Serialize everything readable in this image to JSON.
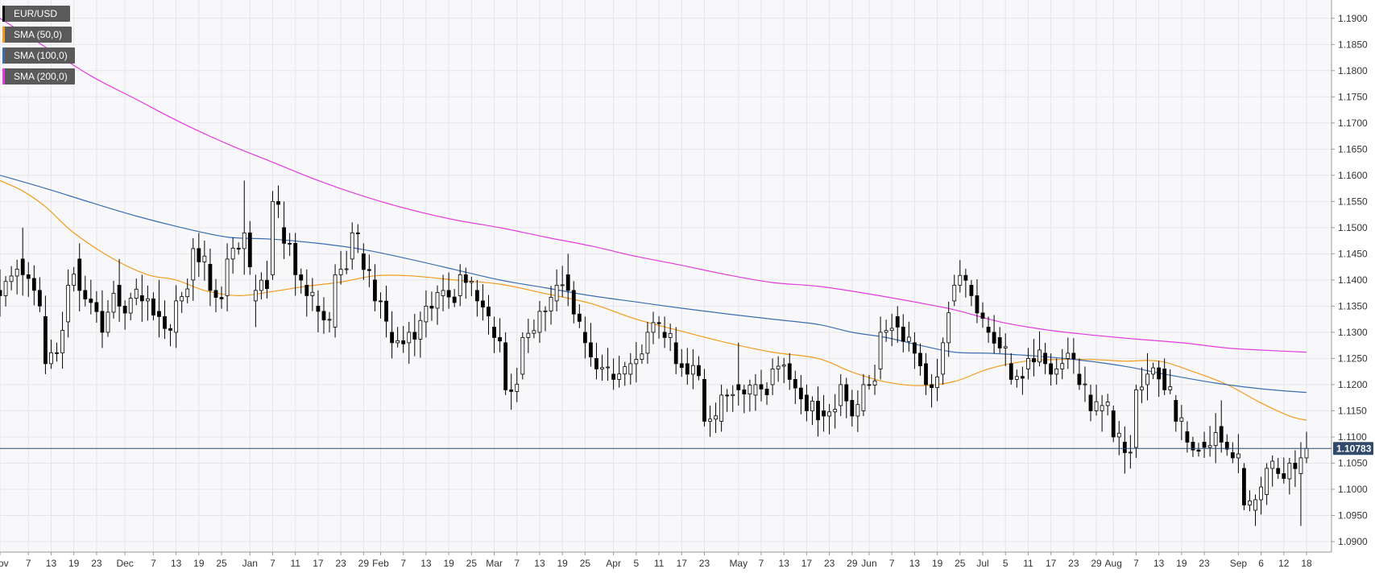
{
  "chart_data": {
    "type": "candlestick",
    "title": "",
    "symbol": "EUR/USD",
    "ylim": [
      1.088,
      1.1935
    ],
    "y_ticks": [
      "1.1900",
      "1.1850",
      "1.1800",
      "1.1750",
      "1.1700",
      "1.1650",
      "1.1600",
      "1.1550",
      "1.1500",
      "1.1450",
      "1.1400",
      "1.1350",
      "1.1300",
      "1.1250",
      "1.1200",
      "1.1150",
      "1.1100",
      "1.1050",
      "1.1000",
      "1.0950",
      "1.0900"
    ],
    "x_ticks": [
      {
        "label": "Nov",
        "t": 0
      },
      {
        "label": "7",
        "t": 5
      },
      {
        "label": "13",
        "t": 9
      },
      {
        "label": "19",
        "t": 13
      },
      {
        "label": "23",
        "t": 17
      },
      {
        "label": "Dec",
        "t": 22
      },
      {
        "label": "7",
        "t": 27
      },
      {
        "label": "13",
        "t": 31
      },
      {
        "label": "19",
        "t": 35
      },
      {
        "label": "25",
        "t": 39
      },
      {
        "label": "Jan",
        "t": 44
      },
      {
        "label": "7",
        "t": 48
      },
      {
        "label": "11",
        "t": 52
      },
      {
        "label": "17",
        "t": 56
      },
      {
        "label": "23",
        "t": 60
      },
      {
        "label": "29",
        "t": 64
      },
      {
        "label": "Feb",
        "t": 67
      },
      {
        "label": "7",
        "t": 71
      },
      {
        "label": "13",
        "t": 75
      },
      {
        "label": "19",
        "t": 79
      },
      {
        "label": "25",
        "t": 83
      },
      {
        "label": "Mar",
        "t": 87
      },
      {
        "label": "7",
        "t": 91
      },
      {
        "label": "13",
        "t": 95
      },
      {
        "label": "19",
        "t": 99
      },
      {
        "label": "25",
        "t": 103
      },
      {
        "label": "Apr",
        "t": 108
      },
      {
        "label": "5",
        "t": 112
      },
      {
        "label": "11",
        "t": 116
      },
      {
        "label": "17",
        "t": 120
      },
      {
        "label": "23",
        "t": 124
      },
      {
        "label": "May",
        "t": 130
      },
      {
        "label": "7",
        "t": 134
      },
      {
        "label": "13",
        "t": 138
      },
      {
        "label": "17",
        "t": 142
      },
      {
        "label": "23",
        "t": 146
      },
      {
        "label": "29",
        "t": 150
      },
      {
        "label": "Jun",
        "t": 153
      },
      {
        "label": "7",
        "t": 157
      },
      {
        "label": "13",
        "t": 161
      },
      {
        "label": "19",
        "t": 165
      },
      {
        "label": "25",
        "t": 169
      },
      {
        "label": "Jul",
        "t": 173
      },
      {
        "label": "5",
        "t": 177
      },
      {
        "label": "11",
        "t": 181
      },
      {
        "label": "17",
        "t": 185
      },
      {
        "label": "23",
        "t": 189
      },
      {
        "label": "29",
        "t": 193
      },
      {
        "label": "Aug",
        "t": 196
      },
      {
        "label": "7",
        "t": 200
      },
      {
        "label": "13",
        "t": 204
      },
      {
        "label": "19",
        "t": 208
      },
      {
        "label": "23",
        "t": 212
      },
      {
        "label": "Sep",
        "t": 218
      },
      {
        "label": "6",
        "t": 222
      },
      {
        "label": "12",
        "t": 226
      },
      {
        "label": "18",
        "t": 230
      }
    ],
    "anchors": [
      [
        0,
        1.138,
        1.142,
        1.133,
        1.137
      ],
      [
        4,
        1.144,
        1.15,
        1.137,
        1.141
      ],
      [
        8,
        1.133,
        1.137,
        1.122,
        1.124
      ],
      [
        12,
        1.132,
        1.142,
        1.129,
        1.139
      ],
      [
        14,
        1.144,
        1.147,
        1.134,
        1.138
      ],
      [
        18,
        1.134,
        1.138,
        1.127,
        1.13
      ],
      [
        21,
        1.139,
        1.144,
        1.132,
        1.135
      ],
      [
        25,
        1.137,
        1.141,
        1.132,
        1.136
      ],
      [
        28,
        1.134,
        1.14,
        1.129,
        1.133
      ],
      [
        31,
        1.13,
        1.139,
        1.127,
        1.136
      ],
      [
        34,
        1.14,
        1.148,
        1.136,
        1.146
      ],
      [
        37,
        1.143,
        1.146,
        1.135,
        1.138
      ],
      [
        40,
        1.137,
        1.147,
        1.134,
        1.144
      ],
      [
        43,
        1.146,
        1.159,
        1.141,
        1.149
      ],
      [
        45,
        1.136,
        1.141,
        1.131,
        1.138
      ],
      [
        48,
        1.141,
        1.157,
        1.14,
        1.155
      ],
      [
        50,
        1.15,
        1.155,
        1.144,
        1.147
      ],
      [
        52,
        1.147,
        1.149,
        1.137,
        1.141
      ],
      [
        54,
        1.139,
        1.142,
        1.133,
        1.137
      ],
      [
        56,
        1.135,
        1.138,
        1.13,
        1.134
      ],
      [
        59,
        1.131,
        1.143,
        1.129,
        1.141
      ],
      [
        62,
        1.144,
        1.151,
        1.142,
        1.149
      ],
      [
        64,
        1.145,
        1.147,
        1.14,
        1.142
      ],
      [
        66,
        1.14,
        1.143,
        1.134,
        1.136
      ],
      [
        69,
        1.13,
        1.134,
        1.125,
        1.128
      ],
      [
        72,
        1.128,
        1.132,
        1.124,
        1.13
      ],
      [
        75,
        1.132,
        1.138,
        1.129,
        1.135
      ],
      [
        78,
        1.137,
        1.141,
        1.134,
        1.138
      ],
      [
        81,
        1.137,
        1.143,
        1.135,
        1.141
      ],
      [
        84,
        1.138,
        1.14,
        1.133,
        1.136
      ],
      [
        87,
        1.131,
        1.133,
        1.126,
        1.129
      ],
      [
        89,
        1.128,
        1.13,
        1.118,
        1.119
      ],
      [
        92,
        1.122,
        1.13,
        1.121,
        1.129
      ],
      [
        95,
        1.13,
        1.136,
        1.128,
        1.134
      ],
      [
        98,
        1.136,
        1.142,
        1.134,
        1.139
      ],
      [
        100,
        1.141,
        1.145,
        1.135,
        1.138
      ],
      [
        103,
        1.13,
        1.133,
        1.125,
        1.128
      ],
      [
        105,
        1.125,
        1.128,
        1.121,
        1.123
      ],
      [
        108,
        1.122,
        1.125,
        1.119,
        1.121
      ],
      [
        111,
        1.122,
        1.126,
        1.12,
        1.124
      ],
      [
        114,
        1.126,
        1.132,
        1.124,
        1.13
      ],
      [
        117,
        1.13,
        1.133,
        1.127,
        1.129
      ],
      [
        119,
        1.128,
        1.131,
        1.122,
        1.124
      ],
      [
        121,
        1.124,
        1.127,
        1.12,
        1.122
      ],
      [
        124,
        1.121,
        1.123,
        1.112,
        1.113
      ],
      [
        127,
        1.113,
        1.12,
        1.111,
        1.118
      ],
      [
        130,
        1.12,
        1.128,
        1.116,
        1.119
      ],
      [
        133,
        1.118,
        1.122,
        1.115,
        1.12
      ],
      [
        136,
        1.12,
        1.125,
        1.118,
        1.123
      ],
      [
        139,
        1.124,
        1.126,
        1.119,
        1.121
      ],
      [
        142,
        1.118,
        1.12,
        1.113,
        1.115
      ],
      [
        145,
        1.115,
        1.118,
        1.111,
        1.114
      ],
      [
        148,
        1.116,
        1.122,
        1.114,
        1.12
      ],
      [
        150,
        1.117,
        1.119,
        1.112,
        1.114
      ],
      [
        152,
        1.115,
        1.122,
        1.114,
        1.12
      ],
      [
        155,
        1.123,
        1.133,
        1.121,
        1.13
      ],
      [
        158,
        1.133,
        1.135,
        1.128,
        1.131
      ],
      [
        161,
        1.128,
        1.13,
        1.123,
        1.126
      ],
      [
        163,
        1.124,
        1.126,
        1.118,
        1.12
      ],
      [
        166,
        1.122,
        1.129,
        1.12,
        1.128
      ],
      [
        168,
        1.136,
        1.141,
        1.135,
        1.139
      ],
      [
        171,
        1.139,
        1.14,
        1.135,
        1.137
      ],
      [
        174,
        1.131,
        1.133,
        1.128,
        1.13
      ],
      [
        176,
        1.129,
        1.131,
        1.126,
        1.127
      ],
      [
        178,
        1.124,
        1.126,
        1.12,
        1.121
      ],
      [
        181,
        1.123,
        1.127,
        1.121,
        1.125
      ],
      [
        184,
        1.126,
        1.128,
        1.122,
        1.124
      ],
      [
        186,
        1.122,
        1.125,
        1.12,
        1.123
      ],
      [
        188,
        1.125,
        1.129,
        1.123,
        1.126
      ],
      [
        190,
        1.122,
        1.125,
        1.119,
        1.12
      ],
      [
        192,
        1.118,
        1.12,
        1.113,
        1.115
      ],
      [
        194,
        1.115,
        1.118,
        1.111,
        1.116
      ],
      [
        196,
        1.115,
        1.116,
        1.109,
        1.11
      ],
      [
        198,
        1.109,
        1.112,
        1.103,
        1.107
      ],
      [
        200,
        1.108,
        1.12,
        1.106,
        1.119
      ],
      [
        202,
        1.12,
        1.126,
        1.117,
        1.122
      ],
      [
        205,
        1.123,
        1.125,
        1.118,
        1.119
      ],
      [
        207,
        1.117,
        1.118,
        1.111,
        1.113
      ],
      [
        209,
        1.111,
        1.113,
        1.107,
        1.109
      ],
      [
        212,
        1.109,
        1.111,
        1.106,
        1.108
      ],
      [
        215,
        1.112,
        1.117,
        1.107,
        1.109
      ],
      [
        217,
        1.107,
        1.109,
        1.105,
        1.106
      ],
      [
        219,
        1.104,
        1.105,
        1.096,
        1.097
      ],
      [
        221,
        1.096,
        1.099,
        1.093,
        1.098
      ],
      [
        223,
        1.099,
        1.105,
        1.097,
        1.104
      ],
      [
        225,
        1.104,
        1.106,
        1.102,
        1.103
      ],
      [
        227,
        1.102,
        1.106,
        1.099,
        1.105
      ],
      [
        229,
        1.103,
        1.109,
        1.093,
        1.106
      ],
      [
        230,
        1.106,
        1.111,
        1.105,
        1.1078
      ]
    ],
    "sma": [
      {
        "name": "SMA (50,0)",
        "color": "#f29b1d",
        "points": [
          [
            0,
            1.159
          ],
          [
            4,
            1.157
          ],
          [
            8,
            1.154
          ],
          [
            13,
            1.149
          ],
          [
            20,
            1.144
          ],
          [
            26,
            1.141
          ],
          [
            31,
            1.14
          ],
          [
            36,
            1.138
          ],
          [
            42,
            1.137
          ],
          [
            48,
            1.1378
          ],
          [
            54,
            1.1388
          ],
          [
            60,
            1.1396
          ],
          [
            66,
            1.1408
          ],
          [
            72,
            1.1408
          ],
          [
            80,
            1.14
          ],
          [
            88,
            1.1392
          ],
          [
            96,
            1.1374
          ],
          [
            104,
            1.1355
          ],
          [
            112,
            1.1325
          ],
          [
            120,
            1.1302
          ],
          [
            128,
            1.128
          ],
          [
            136,
            1.1262
          ],
          [
            144,
            1.125
          ],
          [
            150,
            1.1224
          ],
          [
            156,
            1.1205
          ],
          [
            162,
            1.1198
          ],
          [
            168,
            1.1206
          ],
          [
            174,
            1.123
          ],
          [
            180,
            1.1244
          ],
          [
            186,
            1.1248
          ],
          [
            192,
            1.1248
          ],
          [
            198,
            1.1245
          ],
          [
            204,
            1.1245
          ],
          [
            210,
            1.1225
          ],
          [
            216,
            1.12
          ],
          [
            222,
            1.1165
          ],
          [
            227,
            1.114
          ],
          [
            230,
            1.1132
          ]
        ]
      },
      {
        "name": "SMA (100,0)",
        "color": "#3a6db0",
        "points": [
          [
            0,
            1.16
          ],
          [
            8,
            1.1575
          ],
          [
            16,
            1.1548
          ],
          [
            24,
            1.1522
          ],
          [
            32,
            1.15
          ],
          [
            40,
            1.1482
          ],
          [
            48,
            1.1478
          ],
          [
            56,
            1.147
          ],
          [
            64,
            1.1458
          ],
          [
            72,
            1.144
          ],
          [
            80,
            1.142
          ],
          [
            88,
            1.14
          ],
          [
            96,
            1.1385
          ],
          [
            104,
            1.137
          ],
          [
            112,
            1.1358
          ],
          [
            120,
            1.1346
          ],
          [
            128,
            1.1335
          ],
          [
            136,
            1.1325
          ],
          [
            144,
            1.1315
          ],
          [
            150,
            1.13
          ],
          [
            156,
            1.129
          ],
          [
            162,
            1.1275
          ],
          [
            168,
            1.1262
          ],
          [
            174,
            1.126
          ],
          [
            182,
            1.1255
          ],
          [
            190,
            1.1247
          ],
          [
            198,
            1.1235
          ],
          [
            206,
            1.1218
          ],
          [
            214,
            1.1203
          ],
          [
            222,
            1.1192
          ],
          [
            230,
            1.1185
          ]
        ]
      },
      {
        "name": "SMA (200,0)",
        "color": "#e33be0",
        "points": [
          [
            0,
            1.19
          ],
          [
            8,
            1.1845
          ],
          [
            16,
            1.179
          ],
          [
            24,
            1.1745
          ],
          [
            32,
            1.17
          ],
          [
            40,
            1.166
          ],
          [
            48,
            1.1625
          ],
          [
            56,
            1.159
          ],
          [
            64,
            1.156
          ],
          [
            72,
            1.1535
          ],
          [
            80,
            1.1515
          ],
          [
            88,
            1.15
          ],
          [
            96,
            1.1482
          ],
          [
            104,
            1.1465
          ],
          [
            112,
            1.1445
          ],
          [
            120,
            1.1428
          ],
          [
            128,
            1.141
          ],
          [
            136,
            1.1395
          ],
          [
            144,
            1.1388
          ],
          [
            152,
            1.1375
          ],
          [
            160,
            1.136
          ],
          [
            168,
            1.1343
          ],
          [
            176,
            1.132
          ],
          [
            184,
            1.1305
          ],
          [
            192,
            1.1295
          ],
          [
            200,
            1.1287
          ],
          [
            208,
            1.128
          ],
          [
            216,
            1.127
          ],
          [
            222,
            1.1266
          ],
          [
            230,
            1.1262
          ]
        ]
      }
    ],
    "current_price": 1.1078,
    "current_price_label": "1.10783",
    "candle_up_color": "#ffffff",
    "candle_down_color": "#000000",
    "grid": true,
    "legend_position": "top-left"
  }
}
